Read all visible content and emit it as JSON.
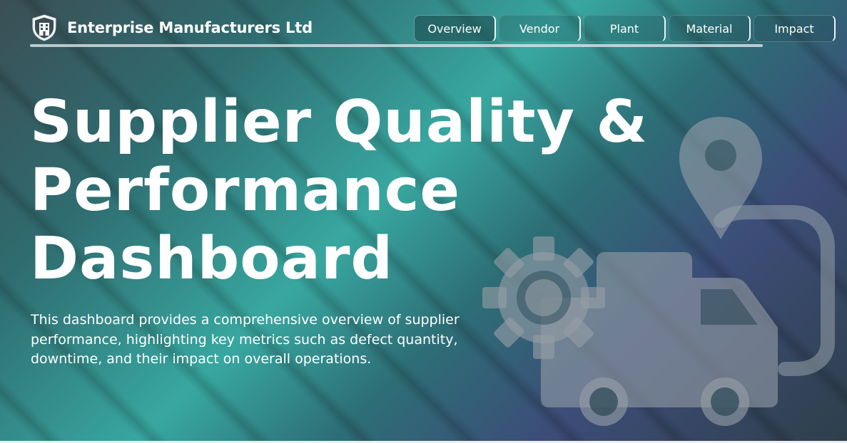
{
  "header": {
    "brand_name": "Enterprise Manufacturers Ltd",
    "logo_icon": "shield-building-icon"
  },
  "nav": {
    "tabs": [
      {
        "label": "Overview",
        "active": true
      },
      {
        "label": "Vendor",
        "active": false
      },
      {
        "label": "Plant",
        "active": false
      },
      {
        "label": "Material",
        "active": false
      },
      {
        "label": "Impact",
        "active": false
      }
    ]
  },
  "hero": {
    "title_lines": [
      "Supplier Quality &",
      "Performance",
      "Dashboard"
    ],
    "description": "This dashboard provides a comprehensive overview of supplier performance, highlighting key metrics such as defect quantity, downtime, and their impact on overall operations."
  },
  "illustration": {
    "icons": [
      "location-pin-icon",
      "gear-icon",
      "delivery-truck-icon"
    ]
  },
  "colors": {
    "teal_highlight": "#38a7a0",
    "base_dark": "#2e3f4b",
    "violet_band": "#3c4d78",
    "text": "#ffffff"
  }
}
